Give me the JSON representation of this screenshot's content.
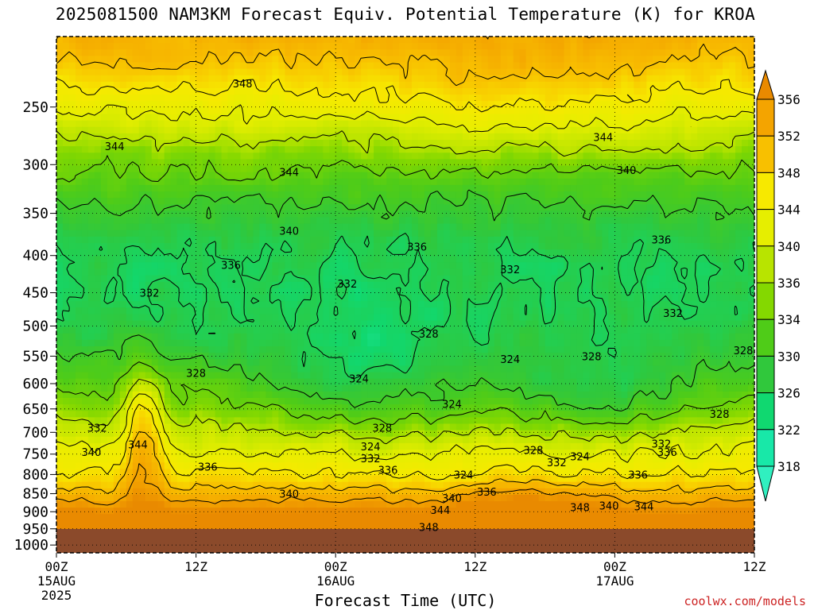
{
  "header": {
    "title": "2025081500 NAM3KM Forecast Equiv. Potential Temperature (K) for KROA"
  },
  "footer": {
    "credit": "coolwx.com/models"
  },
  "chart_data": {
    "type": "contour",
    "title": "2025081500 NAM3KM Forecast Equiv. Potential Temperature (K) for KROA",
    "xlabel": "Forecast Time (UTC)",
    "ylabel": "",
    "x_ticks": [
      {
        "hour": 0,
        "label": "00Z",
        "sub1": "15AUG",
        "sub2": "2025"
      },
      {
        "hour": 12,
        "label": "12Z",
        "sub1": "",
        "sub2": ""
      },
      {
        "hour": 24,
        "label": "00Z",
        "sub1": "16AUG",
        "sub2": ""
      },
      {
        "hour": 36,
        "label": "12Z",
        "sub1": "",
        "sub2": ""
      },
      {
        "hour": 48,
        "label": "00Z",
        "sub1": "17AUG",
        "sub2": ""
      },
      {
        "hour": 60,
        "label": "12Z",
        "sub1": "",
        "sub2": ""
      }
    ],
    "xlim": [
      0,
      60
    ],
    "y_ticks": [
      250,
      300,
      350,
      400,
      450,
      500,
      550,
      600,
      650,
      700,
      750,
      800,
      850,
      900,
      950,
      1000
    ],
    "ylim": [
      200,
      1025
    ],
    "y_scale": "log-pressure (inverted)",
    "colorbar": {
      "ticks": [
        356,
        352,
        348,
        344,
        340,
        336,
        334,
        330,
        326,
        322,
        318
      ],
      "colors": [
        "#e98a00",
        "#f4a400",
        "#f8c000",
        "#f7e900",
        "#e6ee00",
        "#b8e400",
        "#84d800",
        "#4fcc18",
        "#30c83c",
        "#10d870",
        "#18e8a8",
        "#30f0c0"
      ],
      "extend": "both"
    },
    "contour_labels": [
      {
        "text": "348",
        "hour": 16.0,
        "p": 232
      },
      {
        "text": "344",
        "hour": 5.0,
        "p": 283
      },
      {
        "text": "344",
        "hour": 20.0,
        "p": 307
      },
      {
        "text": "344",
        "hour": 47.0,
        "p": 275
      },
      {
        "text": "340",
        "hour": 49.0,
        "p": 305
      },
      {
        "text": "340",
        "hour": 20.0,
        "p": 370
      },
      {
        "text": "336",
        "hour": 31.0,
        "p": 389
      },
      {
        "text": "336",
        "hour": 15.0,
        "p": 412
      },
      {
        "text": "336",
        "hour": 52.0,
        "p": 380
      },
      {
        "text": "332",
        "hour": 39.0,
        "p": 418
      },
      {
        "text": "332",
        "hour": 8.0,
        "p": 450
      },
      {
        "text": "332",
        "hour": 25.0,
        "p": 437
      },
      {
        "text": "332",
        "hour": 53.0,
        "p": 480
      },
      {
        "text": "328",
        "hour": 32.0,
        "p": 512
      },
      {
        "text": "328",
        "hour": 12.0,
        "p": 580
      },
      {
        "text": "328",
        "hour": 61.0,
        "p": 540
      },
      {
        "text": "328",
        "hour": 46.0,
        "p": 550
      },
      {
        "text": "328",
        "hour": 28.0,
        "p": 690
      },
      {
        "text": "328",
        "hour": 57.0,
        "p": 660
      },
      {
        "text": "328",
        "hour": 41.0,
        "p": 740
      },
      {
        "text": "324",
        "hour": 26.0,
        "p": 590
      },
      {
        "text": "324",
        "hour": 39.0,
        "p": 555
      },
      {
        "text": "324",
        "hour": 34.0,
        "p": 640
      },
      {
        "text": "324",
        "hour": 27.0,
        "p": 732
      },
      {
        "text": "324",
        "hour": 45.0,
        "p": 755
      },
      {
        "text": "324",
        "hour": 35.0,
        "p": 800
      },
      {
        "text": "332",
        "hour": 3.5,
        "p": 690
      },
      {
        "text": "344",
        "hour": 7.0,
        "p": 727
      },
      {
        "text": "340",
        "hour": 3.0,
        "p": 745
      },
      {
        "text": "336",
        "hour": 13.0,
        "p": 780
      },
      {
        "text": "332",
        "hour": 27.0,
        "p": 760
      },
      {
        "text": "336",
        "hour": 28.5,
        "p": 788
      },
      {
        "text": "332",
        "hour": 43.0,
        "p": 770
      },
      {
        "text": "336",
        "hour": 52.5,
        "p": 745
      },
      {
        "text": "332",
        "hour": 52.0,
        "p": 725
      },
      {
        "text": "336",
        "hour": 50.0,
        "p": 800
      },
      {
        "text": "340",
        "hour": 20.0,
        "p": 850
      },
      {
        "text": "336",
        "hour": 37.0,
        "p": 845
      },
      {
        "text": "340",
        "hour": 34.0,
        "p": 862
      },
      {
        "text": "344",
        "hour": 33.0,
        "p": 895
      },
      {
        "text": "348",
        "hour": 45.0,
        "p": 887
      },
      {
        "text": "340",
        "hour": 47.5,
        "p": 883
      },
      {
        "text": "344",
        "hour": 50.5,
        "p": 885
      },
      {
        "text": "348",
        "hour": 32.0,
        "p": 945
      }
    ]
  }
}
